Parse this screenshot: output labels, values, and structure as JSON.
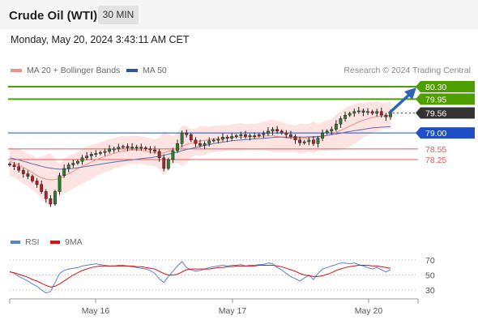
{
  "header": {
    "title": "Crude Oil (WTI)",
    "timeframe": "30 MIN"
  },
  "timestamp": "Monday, May 20, 2024 3:43:11 AM CET",
  "legend": {
    "ma20": "MA 20 + Bollinger Bands",
    "ma50": "MA 50"
  },
  "credit": "Research © 2024 Trading Central",
  "rsi_legend": {
    "rsi": "RSI",
    "ma": "9MA"
  },
  "colors": {
    "resistance": "#4f9e00",
    "support_blue": "#1f4fc8",
    "support_red": "#e85a5a",
    "current": "#333333",
    "arrow": "#2e63b8",
    "candle_up": "#2f7d32",
    "candle_down": "#b21f24"
  },
  "chart_data": [
    {
      "type": "candlestick",
      "levels": [
        {
          "value": 80.3,
          "label": "80.30",
          "kind": "resistance"
        },
        {
          "value": 79.95,
          "label": "79.95",
          "kind": "resistance"
        },
        {
          "value": 79.56,
          "label": "79.56",
          "kind": "current"
        },
        {
          "value": 79.0,
          "label": "79.00",
          "kind": "support_blue"
        },
        {
          "value": 78.55,
          "label": "78.55",
          "kind": "support_red"
        },
        {
          "value": 78.25,
          "label": "78.25",
          "kind": "support_red"
        }
      ],
      "x_ticks": [
        "May 16",
        "May 17",
        "May 20"
      ],
      "closes": [
        78.1,
        78.05,
        77.95,
        77.85,
        77.78,
        77.65,
        77.55,
        77.35,
        77.15,
        77.0,
        77.35,
        77.8,
        78.0,
        78.1,
        78.15,
        78.2,
        78.3,
        78.35,
        78.4,
        78.42,
        78.45,
        78.48,
        78.55,
        78.55,
        78.6,
        78.62,
        78.58,
        78.6,
        78.6,
        78.58,
        78.55,
        78.52,
        78.48,
        78.3,
        78.0,
        78.25,
        78.5,
        78.7,
        79.0,
        78.95,
        78.8,
        78.7,
        78.65,
        78.7,
        78.78,
        78.8,
        78.82,
        78.88,
        78.85,
        78.9,
        78.92,
        78.95,
        78.9,
        78.92,
        78.92,
        78.95,
        78.98,
        79.05,
        79.1,
        79.05,
        79.0,
        78.95,
        78.9,
        78.8,
        78.72,
        78.75,
        78.8,
        78.7,
        78.85,
        79.0,
        79.05,
        79.1,
        79.25,
        79.4,
        79.5,
        79.55,
        79.6,
        79.62,
        79.58,
        79.6,
        79.55,
        79.6,
        79.5,
        79.45,
        79.56
      ],
      "ma20": [
        78.2,
        78.15,
        78.1,
        78.03,
        77.96,
        77.88,
        77.8,
        77.74,
        77.7,
        77.68,
        77.69,
        77.72,
        77.78,
        77.85,
        77.92,
        77.99,
        78.06,
        78.12,
        78.18,
        78.24,
        78.29,
        78.34,
        78.38,
        78.42,
        78.46,
        78.49,
        78.51,
        78.52,
        78.52,
        78.51,
        78.49,
        78.46,
        78.44,
        78.43,
        78.44,
        78.48,
        78.53,
        78.58,
        78.63,
        78.67,
        78.71,
        78.74,
        78.77,
        78.79,
        78.81,
        78.83,
        78.84,
        78.85,
        78.86,
        78.87,
        78.88,
        78.88,
        78.88,
        78.89,
        78.89,
        78.9,
        78.91,
        78.92,
        78.92,
        78.9,
        78.88,
        78.86,
        78.85,
        78.84,
        78.84,
        78.85,
        78.86,
        78.87,
        78.88,
        78.9,
        78.93,
        78.96,
        79.01,
        79.07,
        79.13,
        79.19,
        79.25,
        79.31,
        79.36,
        79.4,
        79.44,
        79.46,
        79.47,
        79.48,
        79.49
      ],
      "ma50": [
        78.3,
        78.27,
        78.24,
        78.2,
        78.17,
        78.13,
        78.1,
        78.06,
        78.03,
        78.01,
        77.99,
        77.98,
        77.98,
        77.99,
        78.0,
        78.02,
        78.04,
        78.06,
        78.08,
        78.1,
        78.12,
        78.14,
        78.16,
        78.18,
        78.2,
        78.21,
        78.23,
        78.24,
        78.26,
        78.28,
        78.29,
        78.3,
        78.32,
        78.34,
        78.37,
        78.4,
        78.43,
        78.46,
        78.5,
        78.53,
        78.56,
        78.59,
        78.62,
        78.65,
        78.67,
        78.7,
        78.72,
        78.74,
        78.76,
        78.78,
        78.79,
        78.8,
        78.81,
        78.82,
        78.83,
        78.84,
        78.85,
        78.86,
        78.87,
        78.88,
        78.88,
        78.88,
        78.88,
        78.88,
        78.88,
        78.88,
        78.89,
        78.89,
        78.9,
        78.91,
        78.93,
        78.95,
        78.97,
        78.99,
        79.02,
        79.04,
        79.06,
        79.08,
        79.1,
        79.12,
        79.14,
        79.15,
        79.16,
        79.17,
        79.18
      ]
    },
    {
      "type": "line",
      "y_ticks": [
        "70",
        "50",
        "30"
      ],
      "series": [
        {
          "name": "RSI",
          "values": [
            55,
            52,
            48,
            45,
            42,
            38,
            35,
            30,
            26,
            28,
            40,
            52,
            56,
            58,
            59,
            60,
            62,
            63,
            64,
            65,
            64,
            63,
            62,
            62,
            63,
            63,
            62,
            61,
            60,
            59,
            58,
            56,
            52,
            45,
            40,
            48,
            55,
            62,
            68,
            60,
            57,
            55,
            56,
            58,
            60,
            61,
            62,
            63,
            62,
            63,
            63,
            64,
            62,
            63,
            63,
            64,
            64,
            66,
            65,
            60,
            57,
            52,
            48,
            45,
            42,
            46,
            50,
            44,
            52,
            58,
            60,
            62,
            64,
            66,
            66,
            65,
            66,
            64,
            62,
            60,
            58,
            60,
            57,
            54,
            57
          ]
        },
        {
          "name": "9MA",
          "values": [
            54,
            53,
            51,
            49,
            47,
            44,
            42,
            39,
            36,
            34,
            35,
            38,
            42,
            46,
            50,
            53,
            56,
            58,
            60,
            61,
            62,
            62,
            62,
            62,
            62,
            62,
            62,
            62,
            61,
            61,
            60,
            59,
            58,
            55,
            52,
            50,
            50,
            51,
            54,
            57,
            58,
            58,
            58,
            58,
            58,
            59,
            60,
            60,
            61,
            61,
            62,
            62,
            62,
            62,
            62,
            63,
            63,
            63,
            63,
            62,
            61,
            59,
            57,
            55,
            52,
            50,
            49,
            48,
            48,
            49,
            51,
            53,
            56,
            58,
            60,
            61,
            62,
            63,
            63,
            63,
            62,
            62,
            61,
            60,
            59
          ]
        }
      ]
    }
  ]
}
